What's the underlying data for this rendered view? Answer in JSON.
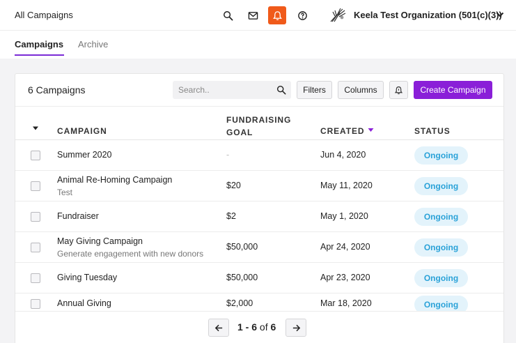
{
  "header": {
    "title": "All Campaigns",
    "organization": "Keela Test Organization (501(c)(3))",
    "icons": [
      "search-icon",
      "mail-icon",
      "bell-icon",
      "help-icon",
      "org-logo",
      "chevron-down-icon"
    ],
    "accent": "#f05a1a"
  },
  "tabs": [
    {
      "label": "Campaigns",
      "active": true
    },
    {
      "label": "Archive",
      "active": false
    }
  ],
  "toolbar": {
    "count_label": "6 Campaigns",
    "search_placeholder": "Search..",
    "filters_label": "Filters",
    "columns_label": "Columns",
    "create_label": "Create Campaign",
    "create_color": "#8a1fd8"
  },
  "table": {
    "columns": {
      "campaign": "CAMPAIGN",
      "goal": "FUNDRAISING GOAL",
      "created": "CREATED",
      "status": "STATUS"
    },
    "sort": {
      "column": "created",
      "direction": "descending"
    },
    "rows": [
      {
        "name": "Summer 2020",
        "description": "",
        "goal": "-",
        "created": "Jun 4, 2020",
        "status": "Ongoing"
      },
      {
        "name": "Animal Re-Homing Campaign",
        "description": "Test",
        "goal": "$20",
        "created": "May 11, 2020",
        "status": "Ongoing"
      },
      {
        "name": "Fundraiser",
        "description": "",
        "goal": "$2",
        "created": "May 1, 2020",
        "status": "Ongoing"
      },
      {
        "name": "May Giving Campaign",
        "description": "Generate engagement with new donors",
        "goal": "$50,000",
        "created": "Apr 24, 2020",
        "status": "Ongoing"
      },
      {
        "name": "Giving Tuesday",
        "description": "",
        "goal": "$50,000",
        "created": "Apr 23, 2020",
        "status": "Ongoing"
      },
      {
        "name": "Annual Giving",
        "description": "",
        "goal": "$2,000",
        "created": "Mar 18, 2020",
        "status": "Ongoing"
      }
    ],
    "status_color": "#2aa2d8"
  },
  "pagination": {
    "range": "1 - 6",
    "of": "of",
    "total": "6"
  }
}
